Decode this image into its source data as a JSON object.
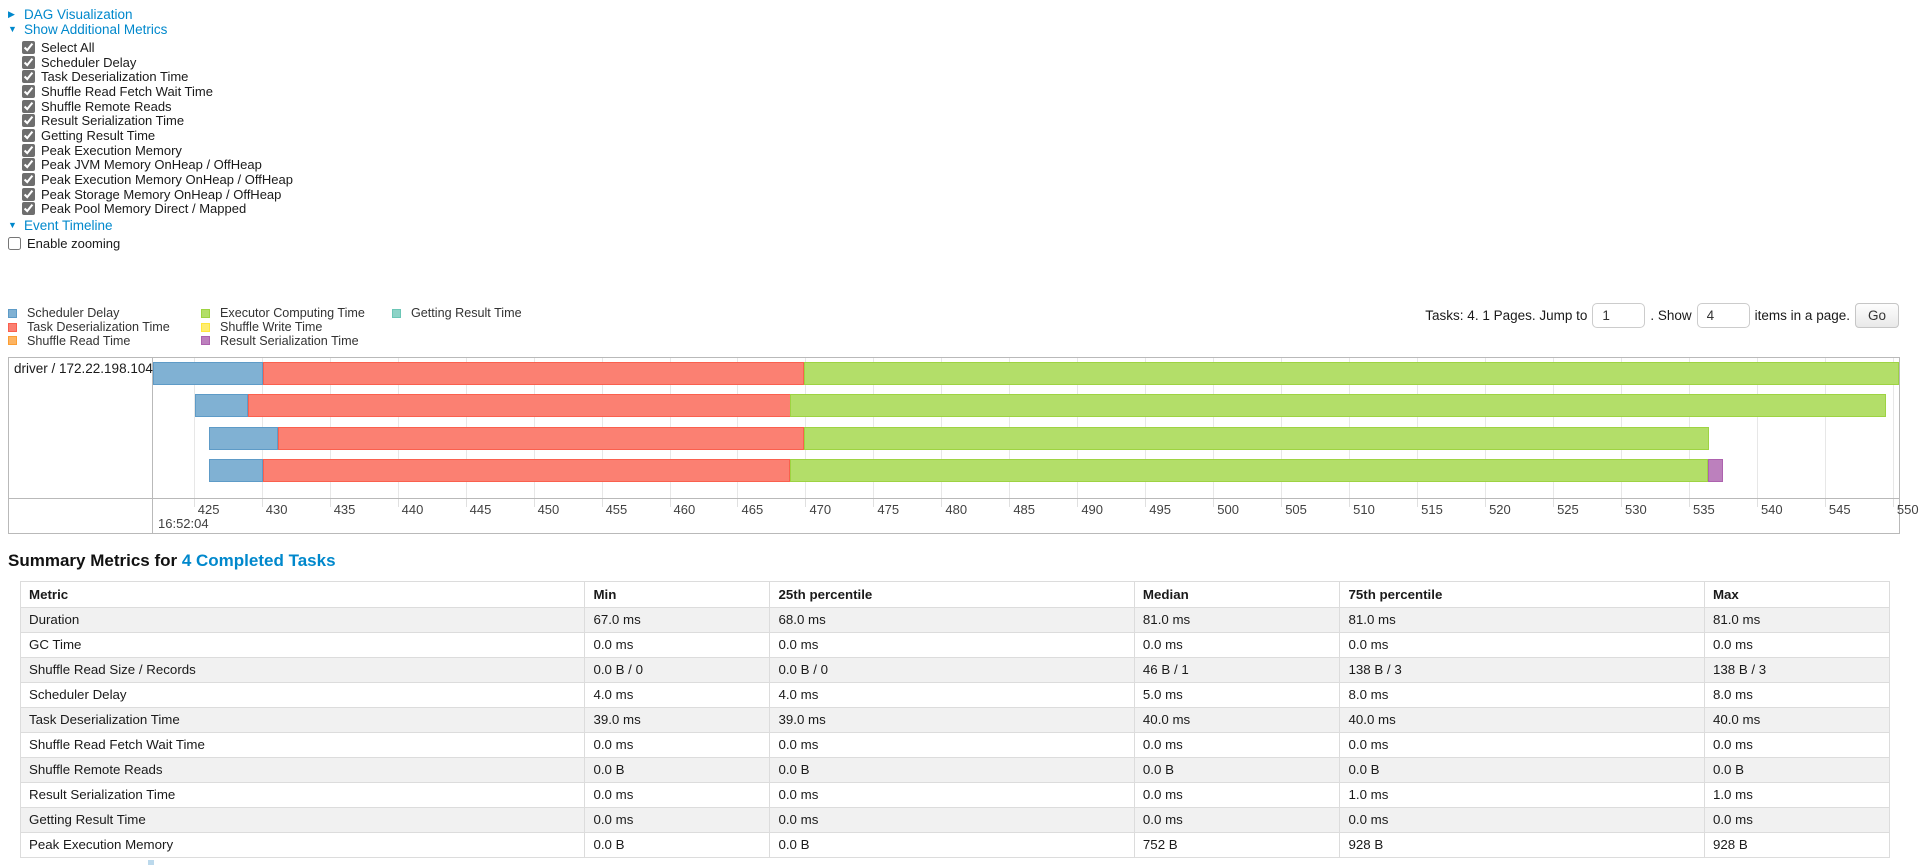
{
  "toggles": {
    "dag_label": "DAG Visualization",
    "metrics_label": "Show Additional Metrics",
    "timeline_label": "Event Timeline",
    "collapsed_arrow": "▶",
    "expanded_arrow": "▼"
  },
  "metrics_panel": {
    "items": [
      {
        "label": "Select All",
        "checked": true
      },
      {
        "label": "Scheduler Delay",
        "checked": true
      },
      {
        "label": "Task Deserialization Time",
        "checked": true
      },
      {
        "label": "Shuffle Read Fetch Wait Time",
        "checked": true
      },
      {
        "label": "Shuffle Remote Reads",
        "checked": true
      },
      {
        "label": "Result Serialization Time",
        "checked": true
      },
      {
        "label": "Getting Result Time",
        "checked": true
      },
      {
        "label": "Peak Execution Memory",
        "checked": true
      },
      {
        "label": "Peak JVM Memory OnHeap / OffHeap",
        "checked": true
      },
      {
        "label": "Peak Execution Memory OnHeap / OffHeap",
        "checked": true
      },
      {
        "label": "Peak Storage Memory OnHeap / OffHeap",
        "checked": true
      },
      {
        "label": "Peak Pool Memory Direct / Mapped",
        "checked": true
      }
    ]
  },
  "enable_zooming": {
    "label": "Enable zooming",
    "checked": false
  },
  "legend": {
    "items": [
      {
        "label": "Scheduler Delay",
        "color": "#80B1D3",
        "border": "#5E9BC7"
      },
      {
        "label": "Task Deserialization Time",
        "color": "#FB8072",
        "border": "#FA604E"
      },
      {
        "label": "Shuffle Read Time",
        "color": "#FDB462",
        "border": "#FC9E33"
      },
      {
        "label": "Executor Computing Time",
        "color": "#B3DE69",
        "border": "#9ED342"
      },
      {
        "label": "Shuffle Write Time",
        "color": "#FFED6F",
        "border": "#FFE63C"
      },
      {
        "label": "Result Serialization Time",
        "color": "#BC80BD",
        "border": "#AD62AE"
      },
      {
        "label": "Getting Result Time",
        "color": "#8DD3C7",
        "border": "#6CC6B6"
      }
    ]
  },
  "pagination": {
    "info": "Tasks: 4. 1 Pages. Jump to",
    "jump_value": "1",
    "show_label": ". Show",
    "show_value": "4",
    "suffix": "items in a page.",
    "go_label": "Go"
  },
  "chart_data": {
    "type": "timeline",
    "group_label": "driver / 172.22.198.104",
    "axis": {
      "min": 422.0,
      "max": 550.45,
      "tick_step": 5,
      "ticks": [
        425,
        430,
        435,
        440,
        445,
        450,
        455,
        460,
        465,
        470,
        475,
        480,
        485,
        490,
        495,
        500,
        505,
        510,
        515,
        520,
        525,
        530,
        535,
        540,
        545,
        550
      ],
      "major_label": "16:52:04"
    },
    "colors": {
      "scheduler_delay": {
        "fill": "#80B1D3",
        "border": "#5E9BC7"
      },
      "task_deserialization": {
        "fill": "#FB8072",
        "border": "#FA604E"
      },
      "shuffle_read": {
        "fill": "#FDB462",
        "border": "#FC9E33"
      },
      "executor_computing": {
        "fill": "#B3DE69",
        "border": "#9ED342"
      },
      "shuffle_write": {
        "fill": "#FFED6F",
        "border": "#FFE63C"
      },
      "result_serialization": {
        "fill": "#BC80BD",
        "border": "#AD62AE"
      },
      "getting_result": {
        "fill": "#8DD3C7",
        "border": "#6CC6B6"
      }
    },
    "tasks": [
      {
        "segments": [
          {
            "metric": "scheduler_delay",
            "start": 422.0,
            "end": 430.1
          },
          {
            "metric": "task_deserialization",
            "start": 430.1,
            "end": 469.9
          },
          {
            "metric": "executor_computing",
            "start": 469.9,
            "end": 550.45
          }
        ]
      },
      {
        "segments": [
          {
            "metric": "scheduler_delay",
            "start": 425.1,
            "end": 429.0
          },
          {
            "metric": "task_deserialization",
            "start": 429.0,
            "end": 468.9
          },
          {
            "metric": "executor_computing",
            "start": 468.9,
            "end": 549.5
          }
        ]
      },
      {
        "segments": [
          {
            "metric": "scheduler_delay",
            "start": 426.1,
            "end": 431.2
          },
          {
            "metric": "task_deserialization",
            "start": 431.2,
            "end": 469.9
          },
          {
            "metric": "executor_computing",
            "start": 469.9,
            "end": 536.5
          }
        ]
      },
      {
        "segments": [
          {
            "metric": "scheduler_delay",
            "start": 426.1,
            "end": 430.1
          },
          {
            "metric": "task_deserialization",
            "start": 430.1,
            "end": 468.9
          },
          {
            "metric": "executor_computing",
            "start": 468.9,
            "end": 536.4
          },
          {
            "metric": "result_serialization",
            "start": 536.4,
            "end": 537.5
          }
        ]
      }
    ]
  },
  "summary": {
    "title_prefix": "Summary Metrics for ",
    "title_link": "4 Completed Tasks",
    "columns": [
      "Metric",
      "Min",
      "25th percentile",
      "Median",
      "75th percentile",
      "Max"
    ],
    "rows": [
      [
        "Duration",
        "67.0 ms",
        "68.0 ms",
        "81.0 ms",
        "81.0 ms",
        "81.0 ms"
      ],
      [
        "GC Time",
        "0.0 ms",
        "0.0 ms",
        "0.0 ms",
        "0.0 ms",
        "0.0 ms"
      ],
      [
        "Shuffle Read Size / Records",
        "0.0 B / 0",
        "0.0 B / 0",
        "46 B / 1",
        "138 B / 3",
        "138 B / 3"
      ],
      [
        "Scheduler Delay",
        "4.0 ms",
        "4.0 ms",
        "5.0 ms",
        "8.0 ms",
        "8.0 ms"
      ],
      [
        "Task Deserialization Time",
        "39.0 ms",
        "39.0 ms",
        "40.0 ms",
        "40.0 ms",
        "40.0 ms"
      ],
      [
        "Shuffle Read Fetch Wait Time",
        "0.0 ms",
        "0.0 ms",
        "0.0 ms",
        "0.0 ms",
        "0.0 ms"
      ],
      [
        "Shuffle Remote Reads",
        "0.0 B",
        "0.0 B",
        "0.0 B",
        "0.0 B",
        "0.0 B"
      ],
      [
        "Result Serialization Time",
        "0.0 ms",
        "0.0 ms",
        "0.0 ms",
        "1.0 ms",
        "1.0 ms"
      ],
      [
        "Getting Result Time",
        "0.0 ms",
        "0.0 ms",
        "0.0 ms",
        "0.0 ms",
        "0.0 ms"
      ],
      [
        "Peak Execution Memory",
        "0.0 B",
        "0.0 B",
        "752 B",
        "928 B",
        "928 B"
      ]
    ]
  }
}
